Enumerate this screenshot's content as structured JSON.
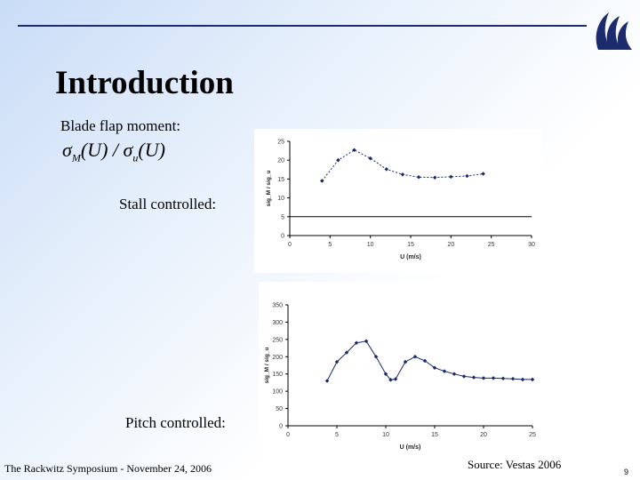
{
  "slide": {
    "title": "Introduction",
    "blade_label": "Blade flap moment:",
    "formula": {
      "sigma": "σ",
      "sub_m": "M",
      "sub_u": "u",
      "arg": "(U)",
      "sep": " / "
    },
    "stall_label": "Stall controlled:",
    "pitch_label": "Pitch controlled:",
    "footer": "The Rackwitz Symposium - November 24,  2006",
    "source": "Source: Vestas 2006",
    "page_number": "9"
  },
  "colors": {
    "rule": "#1c2a6e",
    "logo": "#1c2a6e",
    "series": "#1a2a6c"
  },
  "chart_data": [
    {
      "type": "line",
      "name": "stall",
      "xlabel": "U (m/s)",
      "ylabel": "sig_M / sig_u",
      "xlim": [
        0,
        30
      ],
      "ylim": [
        0,
        25
      ],
      "xticks": [
        0,
        5,
        10,
        15,
        20,
        25,
        30
      ],
      "yticks": [
        0,
        5,
        10,
        15,
        20,
        25
      ],
      "x": [
        4,
        6,
        8,
        10,
        12,
        14,
        16,
        18,
        20,
        22,
        24
      ],
      "y": [
        14.5,
        20,
        22.7,
        20.5,
        17.6,
        16.2,
        15.5,
        15.4,
        15.6,
        15.8,
        16.4
      ],
      "grid": false
    },
    {
      "type": "line",
      "name": "pitch",
      "xlabel": "U (m/s)",
      "ylabel": "sig_M / sig_u",
      "xlim": [
        0,
        25
      ],
      "ylim": [
        0,
        350
      ],
      "xticks": [
        0,
        5,
        10,
        15,
        20,
        25
      ],
      "yticks": [
        0,
        50,
        100,
        150,
        200,
        250,
        300,
        350
      ],
      "x": [
        4,
        5,
        6,
        7,
        8,
        9,
        10,
        10.5,
        11,
        12,
        13,
        14,
        15,
        16,
        17,
        18,
        19,
        20,
        21,
        22,
        23,
        24,
        25
      ],
      "y": [
        130,
        185,
        212,
        240,
        245,
        200,
        150,
        133,
        135,
        185,
        200,
        188,
        168,
        158,
        150,
        143,
        140,
        138,
        138,
        137,
        136,
        134,
        134
      ],
      "grid": false
    }
  ]
}
